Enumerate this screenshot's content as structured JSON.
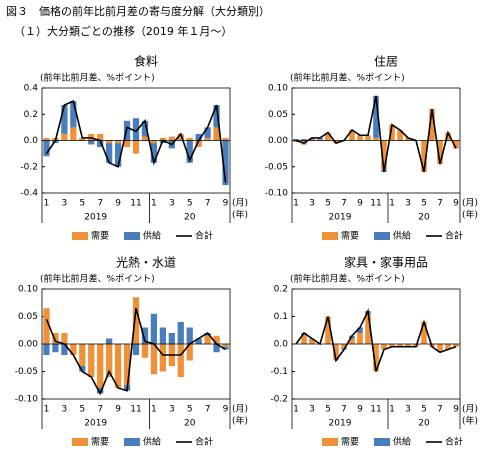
{
  "header": {
    "title": "図３　価格の前年比前月差の寄与度分解（大分類別）",
    "subtitle": "（１）大分類ごとの推移（2019 年１月～）"
  },
  "chart_data": [
    {
      "type": "bar",
      "title": "食料",
      "y_label": "(前年比前月差、%ポイント)",
      "categories": [
        "1",
        null,
        "3",
        null,
        "5",
        null,
        "7",
        null,
        "9",
        null,
        "11",
        null,
        "1",
        null,
        "3",
        null,
        "5",
        null,
        "7",
        null,
        "9"
      ],
      "years": [
        "2019",
        "20"
      ],
      "x_unit": "(月)",
      "year_unit": "(年)",
      "ylim": [
        -0.4,
        0.4
      ],
      "yticks": [
        -0.4,
        -0.2,
        {
          "value": 0,
          "label": "0.0"
        },
        0.2,
        0.4
      ],
      "series": [
        {
          "name": "需要",
          "color": "#f0913a",
          "type": "bar",
          "values": [
            0.02,
            0.02,
            0.05,
            0.1,
            0.02,
            0.05,
            0.05,
            -0.02,
            -0.02,
            -0.05,
            -0.1,
            0.03,
            -0.02,
            0.02,
            0.03,
            0.05,
            0.02,
            -0.05,
            0.02,
            0.1,
            0.02
          ]
        },
        {
          "name": "供給",
          "color": "#4a7dbb",
          "type": "bar",
          "values": [
            -0.12,
            -0.02,
            0.22,
            0.2,
            0,
            -0.03,
            -0.05,
            -0.15,
            -0.18,
            0.15,
            0.17,
            0.12,
            -0.15,
            -0.02,
            -0.06,
            0,
            -0.17,
            0.05,
            0.08,
            0.17,
            -0.34
          ]
        },
        {
          "name": "合計",
          "color": "#000000",
          "type": "line",
          "values": [
            -0.1,
            0.0,
            0.27,
            0.3,
            0.02,
            0.02,
            0.0,
            -0.17,
            -0.2,
            0.1,
            0.07,
            0.15,
            -0.17,
            0.0,
            -0.03,
            0.05,
            -0.15,
            0.0,
            0.1,
            0.27,
            -0.32
          ]
        }
      ]
    },
    {
      "type": "bar",
      "title": "住居",
      "y_label": "(前年比前月差、%ポイント)",
      "categories": [
        "1",
        null,
        "3",
        null,
        "5",
        null,
        "7",
        null,
        "9",
        null,
        "11",
        null,
        "1",
        null,
        "3",
        null,
        "5",
        null,
        "7",
        null,
        "9"
      ],
      "years": [
        "2019",
        "20"
      ],
      "x_unit": "(月)",
      "year_unit": "(年)",
      "ylim": [
        -0.1,
        0.1
      ],
      "yticks": [
        {
          "value": -0.1,
          "label": "-0.10"
        },
        -0.05,
        {
          "value": 0,
          "label": "0.00"
        },
        0.05,
        {
          "value": 0.1,
          "label": "0.10"
        }
      ],
      "series": [
        {
          "name": "需要",
          "color": "#f0913a",
          "type": "bar",
          "values": [
            -0.003,
            -0.008,
            0.002,
            0.002,
            0.015,
            -0.005,
            0,
            0.02,
            0.01,
            0.01,
            0.005,
            -0.057,
            0.03,
            0.02,
            0.005,
            0,
            -0.06,
            0.06,
            -0.045,
            0.015,
            -0.015
          ]
        },
        {
          "name": "供給",
          "color": "#4a7dbb",
          "type": "bar",
          "values": [
            0.003,
            0.003,
            0.003,
            0.003,
            0,
            0,
            0,
            0,
            0,
            0,
            0.08,
            -0.003,
            0,
            0,
            0,
            0,
            0,
            0,
            0,
            0,
            0
          ]
        },
        {
          "name": "合計",
          "color": "#000000",
          "type": "line",
          "values": [
            0,
            -0.005,
            0.005,
            0.005,
            0.015,
            -0.005,
            0,
            0.02,
            0.01,
            0.01,
            0.085,
            -0.06,
            0.03,
            0.02,
            0.005,
            0,
            -0.06,
            0.06,
            -0.045,
            0.015,
            -0.015
          ]
        }
      ]
    },
    {
      "type": "bar",
      "title": "光熱・水道",
      "y_label": "(前年比前月差、%ポイント)",
      "categories": [
        "1",
        null,
        "3",
        null,
        "5",
        null,
        "7",
        null,
        "9",
        null,
        "11",
        null,
        "1",
        null,
        "3",
        null,
        "5",
        null,
        "7",
        null,
        "9"
      ],
      "years": [
        "2019",
        "20"
      ],
      "x_unit": "(月)",
      "year_unit": "(年)",
      "ylim": [
        -0.1,
        0.1
      ],
      "yticks": [
        {
          "value": -0.1,
          "label": "-0.10"
        },
        -0.05,
        {
          "value": 0,
          "label": "0.00"
        },
        0.05,
        {
          "value": 0.1,
          "label": "0.10"
        }
      ],
      "series": [
        {
          "name": "需要",
          "color": "#f0913a",
          "type": "bar",
          "values": [
            0.065,
            0.02,
            0.02,
            -0.02,
            -0.04,
            -0.06,
            -0.08,
            -0.06,
            -0.08,
            -0.075,
            0.085,
            -0.025,
            -0.055,
            -0.05,
            -0.04,
            -0.06,
            -0.03,
            0.0,
            0.015,
            0.015,
            -0.005
          ]
        },
        {
          "name": "供給",
          "color": "#4a7dbb",
          "type": "bar",
          "values": [
            -0.02,
            -0.015,
            -0.02,
            0,
            -0.01,
            0,
            -0.01,
            0.01,
            0,
            -0.01,
            -0.02,
            0.03,
            0.055,
            0.03,
            0.02,
            0.04,
            0.03,
            0.01,
            0.005,
            -0.015,
            -0.005
          ]
        },
        {
          "name": "合計",
          "color": "#000000",
          "type": "line",
          "values": [
            0.045,
            0.005,
            0.0,
            -0.02,
            -0.05,
            -0.06,
            -0.09,
            -0.05,
            -0.08,
            -0.085,
            0.065,
            0.005,
            0.0,
            -0.02,
            -0.02,
            -0.02,
            0.0,
            0.01,
            0.02,
            0.0,
            -0.01
          ]
        }
      ]
    },
    {
      "type": "bar",
      "title": "家具・家事用品",
      "y_label": "(前年比前月差、%ポイント)",
      "categories": [
        "1",
        null,
        "3",
        null,
        "5",
        null,
        "7",
        null,
        "9",
        null,
        "11",
        null,
        "1",
        null,
        "3",
        null,
        "5",
        null,
        "7",
        null,
        "9"
      ],
      "years": [
        "2019",
        "20"
      ],
      "x_unit": "(月)",
      "year_unit": "(年)",
      "ylim": [
        -0.2,
        0.2
      ],
      "yticks": [
        -0.2,
        -0.1,
        {
          "value": 0,
          "label": "0.0"
        },
        0.1,
        0.2
      ],
      "series": [
        {
          "name": "需要",
          "color": "#f0913a",
          "type": "bar",
          "values": [
            0,
            0.035,
            0.02,
            0,
            0.1,
            -0.06,
            -0.015,
            0.02,
            0.04,
            0.11,
            -0.1,
            -0.02,
            -0.01,
            -0.01,
            -0.01,
            -0.01,
            0.08,
            -0.01,
            -0.03,
            -0.02,
            -0.01
          ]
        },
        {
          "name": "供給",
          "color": "#4a7dbb",
          "type": "bar",
          "values": [
            0,
            0.005,
            0,
            0,
            0,
            0,
            -0.005,
            0.01,
            0.02,
            0.01,
            0,
            0,
            0,
            0,
            0,
            0,
            0,
            0,
            0,
            0,
            0
          ]
        },
        {
          "name": "合計",
          "color": "#000000",
          "type": "line",
          "values": [
            0,
            0.04,
            0.02,
            0.0,
            0.1,
            -0.06,
            -0.02,
            0.03,
            0.06,
            0.12,
            -0.1,
            -0.02,
            -0.01,
            -0.01,
            -0.01,
            -0.01,
            0.08,
            -0.01,
            -0.03,
            -0.02,
            -0.01
          ]
        }
      ]
    }
  ]
}
